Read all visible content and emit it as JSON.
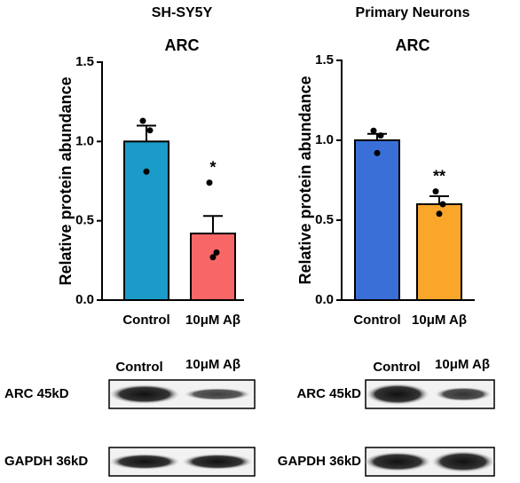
{
  "chart_data": [
    {
      "type": "bar",
      "subtitle": "SH-SY5Y",
      "title": "ARC",
      "ylabel": "Relative protein abundance",
      "categories": [
        "Control",
        "10μM Aβ"
      ],
      "values": [
        1.0,
        0.42
      ],
      "errors": [
        0.1,
        0.11
      ],
      "colors": [
        "#1a9bc9",
        "#f86667"
      ],
      "points": [
        [
          1.13,
          1.07,
          0.81
        ],
        [
          0.74,
          0.3,
          0.27
        ]
      ],
      "annotations": [
        {
          "x": "10μM Aβ",
          "text": "*"
        }
      ],
      "ylim": [
        0,
        1.5
      ],
      "yticks": [
        {
          "value": 0,
          "label": "0.0"
        },
        0.5,
        {
          "value": 1,
          "label": "1.0"
        },
        1.5
      ]
    },
    {
      "type": "bar",
      "subtitle": "Primary Neurons",
      "title": "ARC",
      "ylabel": "Relative protein abundance",
      "categories": [
        "Control",
        "10μM Aβ"
      ],
      "values": [
        1.0,
        0.6
      ],
      "errors": [
        0.04,
        0.05
      ],
      "colors": [
        "#3a6fd8",
        "#f9a62b"
      ],
      "points": [
        [
          1.06,
          1.03,
          0.92
        ],
        [
          0.68,
          0.6,
          0.54
        ]
      ],
      "annotations": [
        {
          "x": "10μM Aβ",
          "text": "**"
        }
      ],
      "ylim": [
        0,
        1.5
      ],
      "yticks": [
        {
          "value": 0,
          "label": "0.0"
        },
        0.5,
        {
          "value": 1,
          "label": "1.0"
        },
        1.5
      ]
    }
  ],
  "blots": [
    {
      "columns": [
        "Control",
        "10μM Aβ"
      ],
      "rows": [
        "ARC 45kD",
        "GAPDH 36kD"
      ]
    },
    {
      "columns": [
        "Control",
        "10μM Aβ"
      ],
      "rows": [
        "ARC 45kD",
        "GAPDH 36kD"
      ]
    }
  ]
}
